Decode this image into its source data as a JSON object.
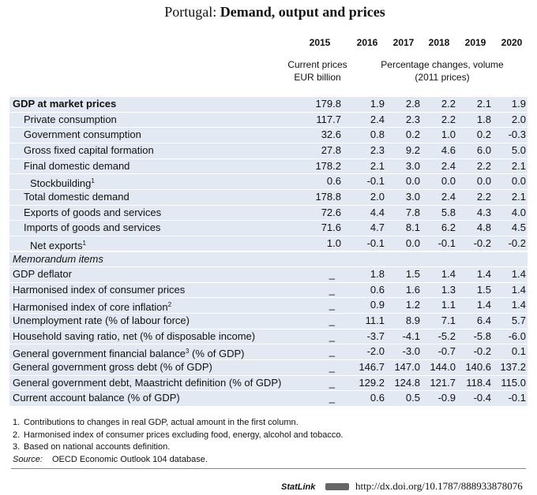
{
  "title": {
    "prefix": "Portugal:",
    "main": "Demand, output and prices"
  },
  "header": {
    "years": [
      "2015",
      "2016",
      "2017",
      "2018",
      "2019",
      "2020"
    ],
    "col1_lines": [
      "Current prices",
      "EUR billion"
    ],
    "col2_lines": [
      "Percentage changes, volume",
      "(2011 prices)"
    ]
  },
  "table": {
    "rows": [
      {
        "label": "GDP at market prices",
        "values": [
          "179.8",
          "1.9",
          "2.8",
          "2.2",
          "2.1",
          "1.9"
        ]
      },
      {
        "label": "Private consumption",
        "values": [
          "117.7",
          "2.4",
          "2.3",
          "2.2",
          "1.8",
          "2.0"
        ]
      },
      {
        "label": "Government consumption",
        "values": [
          "32.6",
          "0.8",
          "0.2",
          "1.0",
          "0.2",
          "-0.3"
        ]
      },
      {
        "label": "Gross fixed capital formation",
        "values": [
          "27.8",
          "2.3",
          "9.2",
          "4.6",
          "6.0",
          "5.0"
        ]
      },
      {
        "label": "Final domestic demand",
        "values": [
          "178.2",
          "2.1",
          "3.0",
          "2.4",
          "2.2",
          "2.1"
        ]
      },
      {
        "label": "Stockbuilding",
        "note": "1",
        "values": [
          "0.6",
          "-0.1",
          "0.0",
          "0.0",
          "0.0",
          "0.0"
        ]
      },
      {
        "label": "Total domestic demand",
        "values": [
          "178.8",
          "2.0",
          "3.0",
          "2.4",
          "2.2",
          "2.1"
        ]
      },
      {
        "label": "Exports of goods and services",
        "values": [
          "72.6",
          "4.4",
          "7.8",
          "5.8",
          "4.3",
          "4.0"
        ]
      },
      {
        "label": "Imports of goods and services",
        "values": [
          "71.6",
          "4.7",
          "8.1",
          "6.2",
          "4.8",
          "4.5"
        ]
      },
      {
        "label": "Net exports",
        "note": "1",
        "values": [
          "1.0",
          "-0.1",
          "0.0",
          "-0.1",
          "-0.2",
          "-0.2"
        ]
      },
      {
        "label": "Memorandum items"
      },
      {
        "label": "GDP deflator",
        "values": [
          "_",
          "1.8",
          "1.5",
          "1.4",
          "1.4",
          "1.4"
        ]
      },
      {
        "label": "Harmonised index of consumer prices",
        "values": [
          "_",
          "0.6",
          "1.6",
          "1.3",
          "1.5",
          "1.4"
        ]
      },
      {
        "label": "Harmonised index of core inflation",
        "note": "2",
        "values": [
          "_",
          "0.9",
          "1.2",
          "1.1",
          "1.4",
          "1.4"
        ]
      },
      {
        "label": "Unemployment rate (% of labour force)",
        "values": [
          "_",
          "11.1",
          "8.9",
          "7.1",
          "6.4",
          "5.7"
        ]
      },
      {
        "label": "Household saving ratio, net (% of disposable income)",
        "values": [
          "_",
          "-3.7",
          "-4.1",
          "-5.2",
          "-5.8",
          "-6.0"
        ]
      },
      {
        "label": "General government financial balance",
        "note": "3",
        "label_after": " (% of GDP)",
        "values": [
          "_",
          "-2.0",
          "-3.0",
          "-0.7",
          "-0.2",
          "0.1"
        ]
      },
      {
        "label": "General government gross debt (% of GDP)",
        "values": [
          "_",
          "146.7",
          "147.0",
          "144.0",
          "140.6",
          "137.2"
        ]
      },
      {
        "label": "General government debt, Maastricht definition (% of GDP)",
        "values": [
          "_",
          "129.2",
          "124.8",
          "121.7",
          "118.4",
          "115.0"
        ]
      },
      {
        "label": "Current account balance (% of GDP)",
        "values": [
          "_",
          "0.6",
          "0.5",
          "-0.9",
          "-0.4",
          "-0.1"
        ]
      }
    ]
  },
  "footnotes": [
    {
      "number": "1.",
      "text": "Contributions to changes in real GDP, actual amount in the first column."
    },
    {
      "number": "2.",
      "text": "Harmonised index of consumer prices excluding food, energy, alcohol and tobacco."
    },
    {
      "number": "3.",
      "text": "Based on national accounts definition."
    }
  ],
  "source": {
    "label": "Source:",
    "text": "OECD Economic Outlook 104 database."
  },
  "statlink": {
    "label": "StatLink",
    "url": "http://dx.doi.org/10.1787/888933878076"
  }
}
